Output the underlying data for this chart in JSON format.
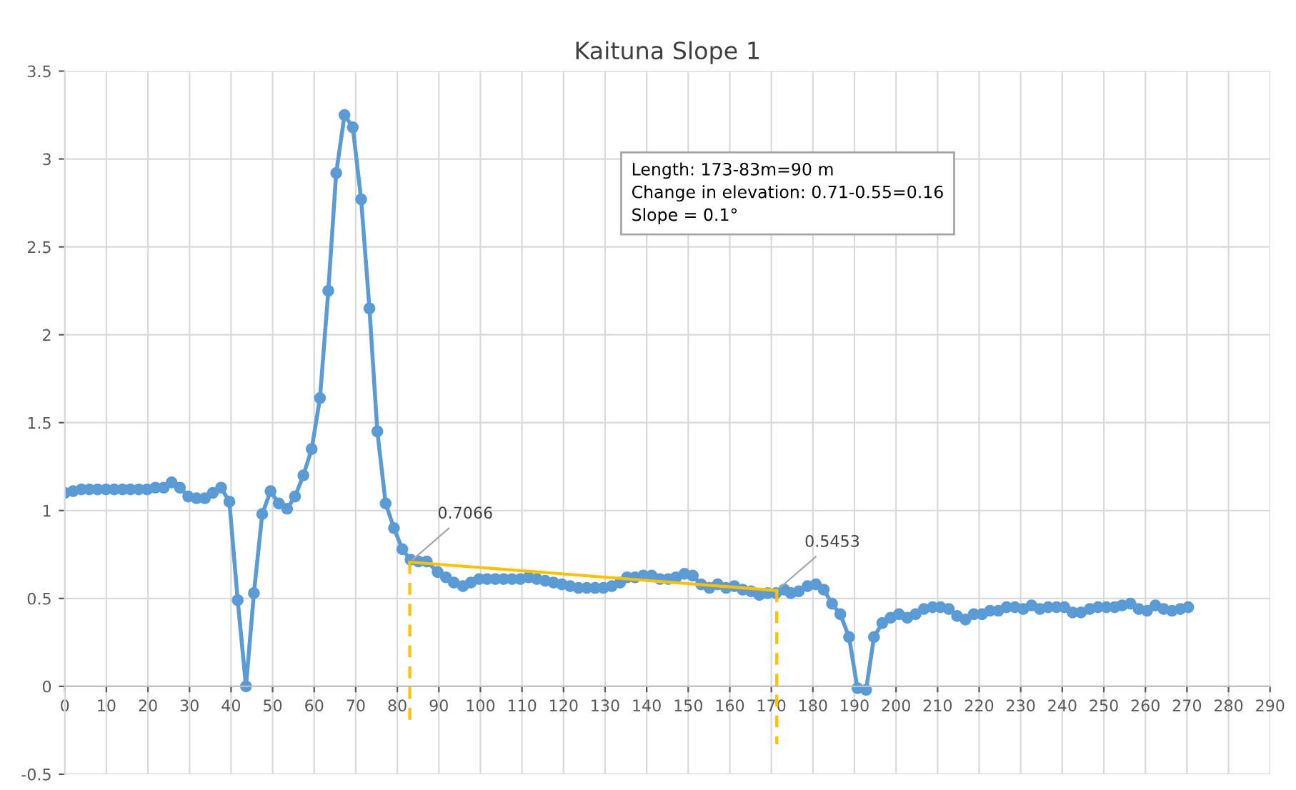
{
  "chart_data": {
    "type": "line",
    "title": "Kaituna Slope 1",
    "series": [
      {
        "color": "#5b9bd5",
        "marker": "circle",
        "x": [
          0,
          2.0,
          4.0,
          5.9,
          7.9,
          9.9,
          11.9,
          13.9,
          15.8,
          17.8,
          19.8,
          21.8,
          23.8,
          25.7,
          27.7,
          29.7,
          31.7,
          33.7,
          35.6,
          37.6,
          39.6,
          41.6,
          43.6,
          45.5,
          47.5,
          49.5,
          51.5,
          53.5,
          55.4,
          57.4,
          59.4,
          61.4,
          63.4,
          65.3,
          67.3,
          69.3,
          71.3,
          73.3,
          75.2,
          77.2,
          79.2,
          81.2,
          83.2,
          85.1,
          87.1,
          89.7,
          91.7,
          93.6,
          95.8,
          97.7,
          99.7,
          101.6,
          103.6,
          105.6,
          107.6,
          109.6,
          111.6,
          113.6,
          115.6,
          117.6,
          119.6,
          121.6,
          123.6,
          125.6,
          127.6,
          129.6,
          131.6,
          133.6,
          135.3,
          137.2,
          139.2,
          141.2,
          143.2,
          145.2,
          147.1,
          149.1,
          151.1,
          153.1,
          155.1,
          157.1,
          159.1,
          161.1,
          163.1,
          165.1,
          167.1,
          169.1,
          171.1,
          173.1,
          174.7,
          176.6,
          178.7,
          180.7,
          182.6,
          184.6,
          186.6,
          188.7,
          190.7,
          192.8,
          194.7,
          196.7,
          198.7,
          200.7,
          202.7,
          204.7,
          206.7,
          208.8,
          210.7,
          212.7,
          214.7,
          216.7,
          218.7,
          220.7,
          222.6,
          224.6,
          226.6,
          228.6,
          230.6,
          232.6,
          234.6,
          236.6,
          238.6,
          240.5,
          242.5,
          244.5,
          246.6,
          248.6,
          250.6,
          252.6,
          254.4,
          256.4,
          258.4,
          260.4,
          262.4,
          264.4,
          266.4,
          268.4,
          270.3
        ],
        "values": [
          1.1,
          1.11,
          1.12,
          1.12,
          1.12,
          1.12,
          1.12,
          1.12,
          1.12,
          1.12,
          1.12,
          1.13,
          1.13,
          1.16,
          1.13,
          1.08,
          1.07,
          1.07,
          1.1,
          1.13,
          1.05,
          0.49,
          0.0,
          0.53,
          0.98,
          1.11,
          1.04,
          1.01,
          1.08,
          1.2,
          1.35,
          1.64,
          2.25,
          2.92,
          3.25,
          3.18,
          2.77,
          2.15,
          1.45,
          1.04,
          0.9,
          0.78,
          0.72,
          0.71,
          0.71,
          0.65,
          0.62,
          0.59,
          0.57,
          0.59,
          0.61,
          0.61,
          0.61,
          0.61,
          0.61,
          0.61,
          0.62,
          0.61,
          0.6,
          0.59,
          0.58,
          0.57,
          0.56,
          0.56,
          0.56,
          0.56,
          0.57,
          0.59,
          0.62,
          0.62,
          0.63,
          0.63,
          0.61,
          0.61,
          0.62,
          0.64,
          0.63,
          0.58,
          0.56,
          0.58,
          0.56,
          0.57,
          0.55,
          0.54,
          0.52,
          0.53,
          0.53,
          0.55,
          0.53,
          0.54,
          0.57,
          0.58,
          0.55,
          0.47,
          0.41,
          0.28,
          -0.01,
          -0.02,
          0.28,
          0.36,
          0.39,
          0.41,
          0.39,
          0.41,
          0.44,
          0.45,
          0.45,
          0.44,
          0.4,
          0.38,
          0.41,
          0.41,
          0.43,
          0.43,
          0.45,
          0.45,
          0.44,
          0.46,
          0.44,
          0.45,
          0.45,
          0.45,
          0.42,
          0.42,
          0.44,
          0.45,
          0.45,
          0.45,
          0.46,
          0.47,
          0.44,
          0.43,
          0.46,
          0.44,
          0.43,
          0.44,
          0.45
        ]
      },
      {
        "color": "#ffc000",
        "marker": "none",
        "line_style": "solid",
        "x": [
          83,
          171.3
        ],
        "values": [
          0.7066,
          0.5453
        ]
      },
      {
        "color": "#ffc000",
        "marker": "none",
        "line_style": "dashed",
        "x": [
          83,
          83
        ],
        "values": [
          0.7066,
          -0.2
        ]
      },
      {
        "color": "#ffc000",
        "marker": "none",
        "line_style": "dashed",
        "x": [
          171.3,
          171.3
        ],
        "values": [
          0.5453,
          -0.33
        ]
      }
    ],
    "xlim": [
      0,
      290
    ],
    "xticks": [
      0,
      10,
      20,
      30,
      40,
      50,
      60,
      70,
      80,
      90,
      100,
      110,
      120,
      130,
      140,
      150,
      160,
      170,
      180,
      190,
      200,
      210,
      220,
      230,
      240,
      250,
      260,
      270,
      280,
      290
    ],
    "ylim": [
      -0.5,
      3.5
    ],
    "yticks": [
      -0.5,
      0,
      0.5,
      1,
      1.5,
      2,
      2.5,
      3,
      3.5
    ],
    "grid": true,
    "legend": false,
    "annotations": [
      {
        "text": "0.7066",
        "x": 83,
        "y": 0.7066
      },
      {
        "text": "0.5453",
        "x": 171.3,
        "y": 0.5453
      },
      "Length: 173-83m=90 m\nChange in elevation: 0.71-0.55=0.16\nSlope = 0.1°"
    ]
  }
}
